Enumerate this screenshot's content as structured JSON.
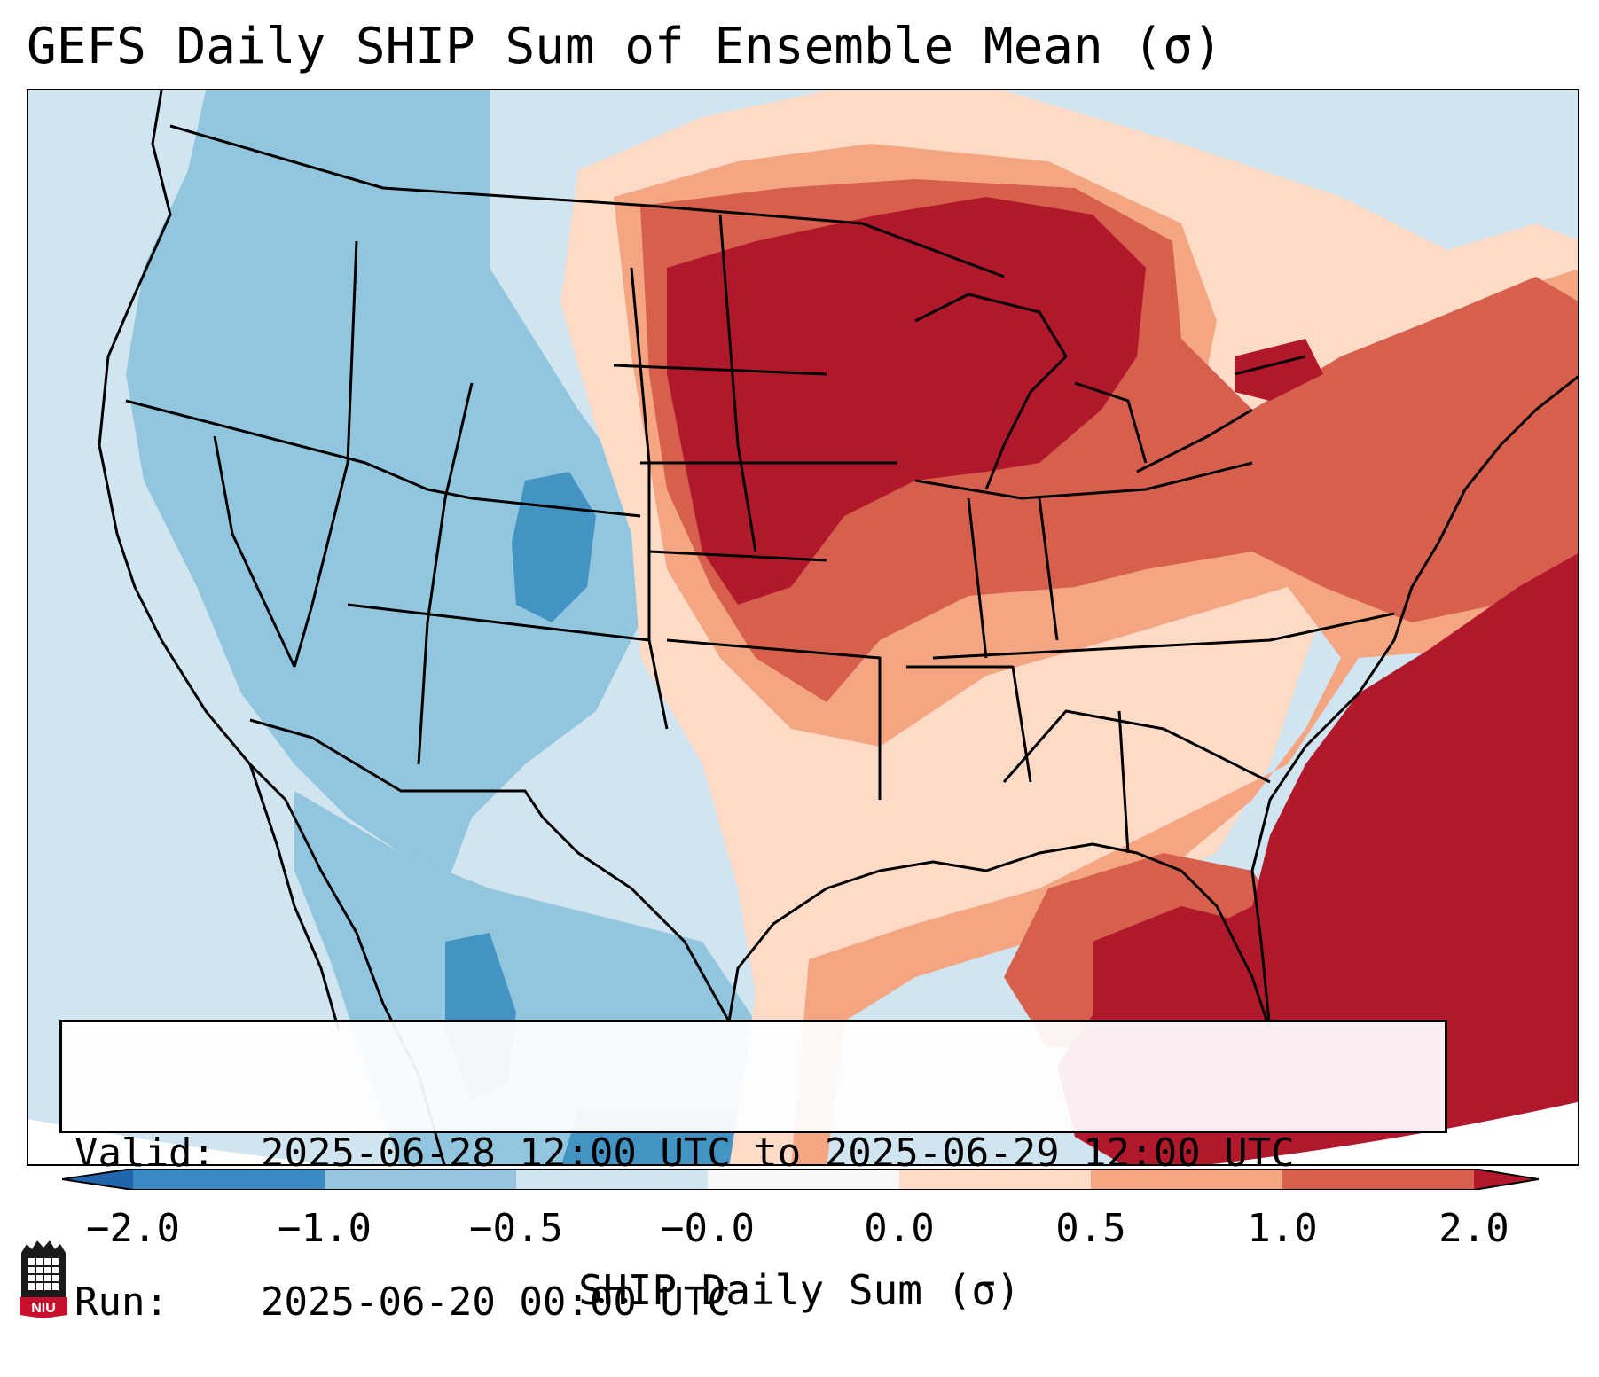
{
  "title": "GEFS Daily SHIP Sum of Ensemble Mean (σ)",
  "info_box": {
    "valid_label": "Valid:",
    "valid_value": "2025-06-28 12:00 UTC to 2025-06-29 12:00 UTC",
    "run_label": "Run:",
    "run_value": "2025-06-20 00:00 UTC"
  },
  "colorbar": {
    "label": "SHIP Daily Sum (σ)",
    "ticks": [
      "−2.0",
      "−1.0",
      "−0.5",
      "−0.0",
      "0.0",
      "0.5",
      "1.0",
      "2.0"
    ],
    "colors": [
      "#3a8ac4",
      "#94c4df",
      "#d1e5f0",
      "#f7f7f7",
      "#fddbc7",
      "#f4a582",
      "#d6604d",
      "#b2182b"
    ]
  },
  "colors": {
    "strong_negative": "#4393c3",
    "negative": "#92c5de",
    "weak_negative": "#d1e5f0",
    "weak_positive": "#fddbc7",
    "positive": "#f4a582",
    "strong_positive": "#d6604d",
    "extreme_positive": "#b2182b"
  },
  "logo": {
    "text": "NIU"
  }
}
